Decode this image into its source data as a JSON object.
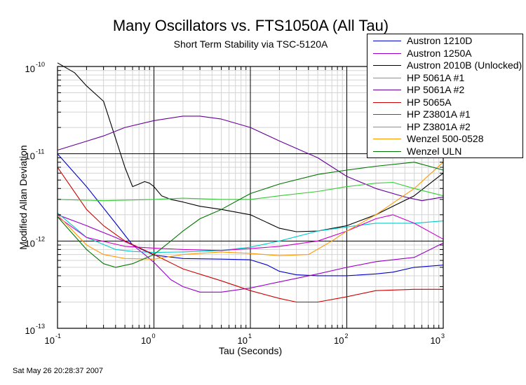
{
  "chart_data": {
    "type": "line",
    "title": "Many Oscillators vs. FTS1050A (All Tau)",
    "subtitle": "Short Term Stability via TSC-5120A",
    "xlabel": "Tau (Seconds)",
    "ylabel": "Modified Allan Deviation",
    "xscale": "log",
    "yscale": "log",
    "xlim": [
      0.1,
      1000
    ],
    "ylim": [
      1e-13,
      1e-10
    ],
    "x_ticks": [
      {
        "base": "10",
        "exp": "-1",
        "value": 0.1
      },
      {
        "base": "10",
        "exp": "0",
        "value": 1
      },
      {
        "base": "10",
        "exp": "1",
        "value": 10
      },
      {
        "base": "10",
        "exp": "2",
        "value": 100
      },
      {
        "base": "10",
        "exp": "3",
        "value": 1000
      }
    ],
    "y_ticks": [
      {
        "base": "10",
        "exp": "-13",
        "value": 1e-13
      },
      {
        "base": "10",
        "exp": "-12",
        "value": 1e-12
      },
      {
        "base": "10",
        "exp": "-11",
        "value": 1e-11
      },
      {
        "base": "10",
        "exp": "-10",
        "value": 1e-10
      }
    ],
    "grid": true,
    "legend_position": "top-right",
    "series": [
      {
        "name": "Austron 1210D",
        "color": "#0000cc",
        "points": [
          [
            0.1,
            1e-11
          ],
          [
            0.2,
            4.2e-12
          ],
          [
            0.4,
            1.6e-12
          ],
          [
            0.6,
            9e-13
          ],
          [
            1,
            6.9e-13
          ],
          [
            2,
            6.3e-13
          ],
          [
            5,
            6.2e-13
          ],
          [
            10,
            6.1e-13
          ],
          [
            15,
            5.3e-13
          ],
          [
            20,
            4.5e-13
          ],
          [
            30,
            4.1e-13
          ],
          [
            50,
            4e-13
          ],
          [
            100,
            4e-13
          ],
          [
            200,
            4.2e-13
          ],
          [
            300,
            4.4e-13
          ],
          [
            500,
            5e-13
          ],
          [
            1000,
            5.3e-13
          ]
        ]
      },
      {
        "name": "Austron 1250A",
        "color": "#9900cc",
        "points": [
          [
            0.1,
            2e-12
          ],
          [
            0.2,
            1.5e-12
          ],
          [
            0.4,
            1.1e-12
          ],
          [
            0.6,
            9e-13
          ],
          [
            0.8,
            7e-13
          ],
          [
            1,
            5.7e-13
          ],
          [
            1.5,
            3.6e-13
          ],
          [
            2,
            3e-13
          ],
          [
            3,
            2.6e-13
          ],
          [
            5,
            2.6e-13
          ],
          [
            10,
            2.9e-13
          ],
          [
            20,
            3.4e-13
          ],
          [
            50,
            4.2e-13
          ],
          [
            100,
            5e-13
          ],
          [
            200,
            5.8e-13
          ],
          [
            500,
            6.5e-13
          ],
          [
            1000,
            9.5e-13
          ]
        ]
      },
      {
        "name": "Austron 2010B (Unlocked)",
        "color": "#000000",
        "points": [
          [
            0.1,
            1.1e-10
          ],
          [
            0.15,
            8.5e-11
          ],
          [
            0.2,
            6e-11
          ],
          [
            0.3,
            4e-11
          ],
          [
            0.4,
            1.5e-11
          ],
          [
            0.5,
            7e-12
          ],
          [
            0.6,
            4.2e-12
          ],
          [
            0.7,
            4.5e-12
          ],
          [
            0.8,
            4.8e-12
          ],
          [
            0.9,
            4.6e-12
          ],
          [
            1,
            4.2e-12
          ],
          [
            1.2,
            3.3e-12
          ],
          [
            1.5,
            3e-12
          ],
          [
            2,
            2.8e-12
          ],
          [
            3,
            2.5e-12
          ],
          [
            5,
            2.3e-12
          ],
          [
            10,
            2e-12
          ],
          [
            20,
            1.4e-12
          ],
          [
            30,
            1.28e-12
          ],
          [
            50,
            1.3e-12
          ],
          [
            100,
            1.5e-12
          ],
          [
            200,
            2e-12
          ],
          [
            300,
            2.5e-12
          ],
          [
            500,
            3.3e-12
          ],
          [
            1000,
            6e-12
          ]
        ]
      },
      {
        "name": "HP 5061A #1",
        "color": "#00cccc",
        "points": [
          [
            0.1,
            2.1e-12
          ],
          [
            0.2,
            1.1e-12
          ],
          [
            0.4,
            8e-13
          ],
          [
            0.6,
            7.6e-13
          ],
          [
            1,
            7.4e-13
          ],
          [
            2,
            7.5e-13
          ],
          [
            5,
            7.8e-13
          ],
          [
            10,
            8.5e-13
          ],
          [
            20,
            1e-12
          ],
          [
            50,
            1.3e-12
          ],
          [
            100,
            1.45e-12
          ],
          [
            200,
            1.6e-12
          ],
          [
            500,
            1.6e-12
          ],
          [
            1000,
            1.7e-12
          ]
        ]
      },
      {
        "name": "HP 5061A #2",
        "color": "#660099",
        "points": [
          [
            0.1,
            1.1e-11
          ],
          [
            0.3,
            1.6e-11
          ],
          [
            0.5,
            2e-11
          ],
          [
            1,
            2.4e-11
          ],
          [
            2,
            2.7e-11
          ],
          [
            3,
            2.7e-11
          ],
          [
            5,
            2.5e-11
          ],
          [
            10,
            2e-11
          ],
          [
            20,
            1.4e-11
          ],
          [
            50,
            9e-12
          ],
          [
            100,
            5.5e-12
          ],
          [
            200,
            4e-12
          ],
          [
            400,
            3.2e-12
          ],
          [
            600,
            2.9e-12
          ],
          [
            1000,
            3.2e-12
          ]
        ]
      },
      {
        "name": "HP 5065A",
        "color": "#cc0000",
        "points": [
          [
            0.1,
            7e-12
          ],
          [
            0.2,
            2.3e-12
          ],
          [
            0.3,
            1.5e-12
          ],
          [
            0.5,
            1e-12
          ],
          [
            1,
            7e-13
          ],
          [
            2,
            4.8e-13
          ],
          [
            5,
            3.5e-13
          ],
          [
            10,
            2.7e-13
          ],
          [
            20,
            2.2e-13
          ],
          [
            30,
            2e-13
          ],
          [
            50,
            2e-13
          ],
          [
            100,
            2.3e-13
          ],
          [
            200,
            2.7e-13
          ],
          [
            500,
            2.8e-13
          ],
          [
            1000,
            2.8e-13
          ]
        ]
      },
      {
        "name": "HP Z3801A #1",
        "color": "#cc00cc",
        "points": [
          [
            0.1,
            1.9e-12
          ],
          [
            0.2,
            1.1e-12
          ],
          [
            0.5,
            8.7e-13
          ],
          [
            1,
            8.3e-13
          ],
          [
            2,
            8e-13
          ],
          [
            5,
            7.8e-13
          ],
          [
            10,
            8.2e-13
          ],
          [
            20,
            8.7e-13
          ],
          [
            50,
            1e-12
          ],
          [
            100,
            1.3e-12
          ],
          [
            200,
            1.8e-12
          ],
          [
            300,
            2e-12
          ],
          [
            500,
            1.6e-12
          ],
          [
            1000,
            1.05e-12
          ]
        ]
      },
      {
        "name": "HP Z3801A #2",
        "color": "#33cc33",
        "points": [
          [
            0.1,
            3e-12
          ],
          [
            0.3,
            2.9e-12
          ],
          [
            1,
            3e-12
          ],
          [
            2,
            3.1e-12
          ],
          [
            5,
            3e-12
          ],
          [
            10,
            3e-12
          ],
          [
            20,
            3.3e-12
          ],
          [
            50,
            3.7e-12
          ],
          [
            100,
            4.2e-12
          ],
          [
            200,
            4.6e-12
          ],
          [
            300,
            4.7e-12
          ],
          [
            500,
            4e-12
          ],
          [
            1000,
            3.3e-12
          ]
        ]
      },
      {
        "name": "Wenzel 500-0528",
        "color": "#ff9900",
        "points": [
          [
            0.1,
            2e-12
          ],
          [
            0.2,
            9e-13
          ],
          [
            0.3,
            7e-13
          ],
          [
            0.5,
            6.3e-13
          ],
          [
            1,
            6.2e-13
          ],
          [
            2,
            7e-13
          ],
          [
            5,
            7.5e-13
          ],
          [
            10,
            7.2e-13
          ],
          [
            20,
            6.8e-13
          ],
          [
            40,
            7e-13
          ],
          [
            70,
            1e-12
          ],
          [
            100,
            1.3e-12
          ],
          [
            200,
            2e-12
          ],
          [
            500,
            4e-12
          ],
          [
            1000,
            8e-12
          ]
        ]
      },
      {
        "name": "Wenzel ULN",
        "color": "#007700",
        "points": [
          [
            0.1,
            1.9e-12
          ],
          [
            0.2,
            8e-13
          ],
          [
            0.3,
            5.5e-13
          ],
          [
            0.4,
            5e-13
          ],
          [
            0.6,
            5.5e-13
          ],
          [
            1,
            7e-13
          ],
          [
            1.5,
            1e-12
          ],
          [
            2,
            1.3e-12
          ],
          [
            3,
            1.8e-12
          ],
          [
            5,
            2.3e-12
          ],
          [
            10,
            3.5e-12
          ],
          [
            20,
            4.5e-12
          ],
          [
            50,
            5.8e-12
          ],
          [
            100,
            6.5e-12
          ],
          [
            200,
            7.2e-12
          ],
          [
            500,
            8e-12
          ],
          [
            1000,
            6.5e-12
          ]
        ]
      }
    ]
  },
  "timestamp": "Sat May 26 20:28:37 2007"
}
